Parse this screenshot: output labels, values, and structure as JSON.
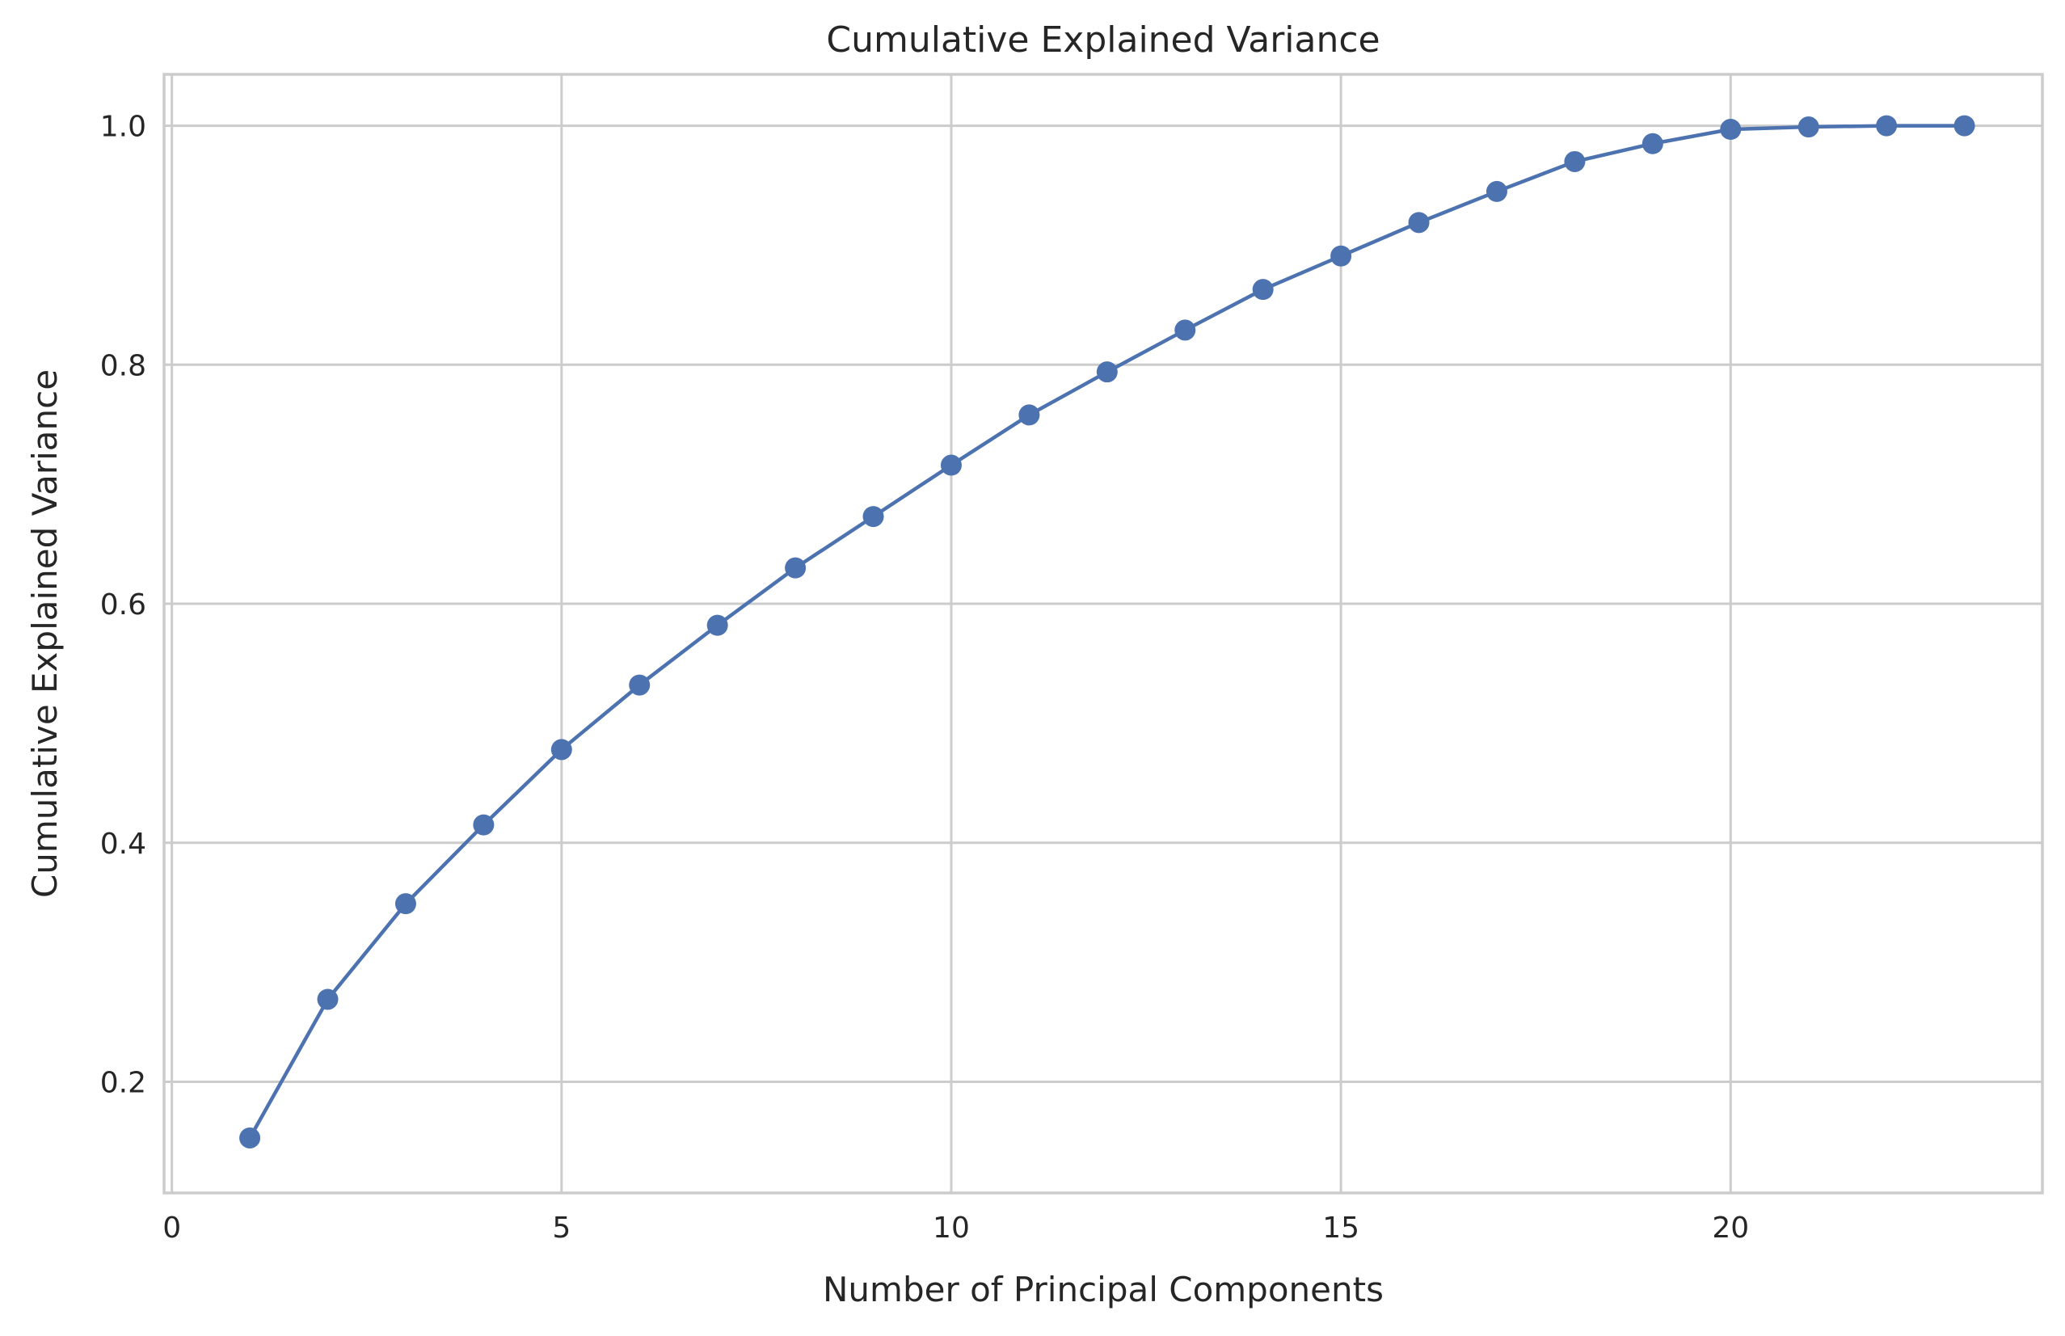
{
  "chart_data": {
    "type": "line",
    "title": "Cumulative Explained Variance",
    "xlabel": "Number of Principal Components",
    "ylabel": "Cumulative Explained Variance",
    "xlim": [
      -0.1,
      24.0
    ],
    "ylim": [
      0.107,
      1.043
    ],
    "xticks": [
      0,
      5,
      10,
      15,
      20
    ],
    "xtick_labels": [
      "0",
      "5",
      "10",
      "15",
      "20"
    ],
    "yticks": [
      0.2,
      0.4,
      0.6,
      0.8,
      1.0
    ],
    "ytick_labels": [
      "0.2",
      "0.4",
      "0.6",
      "0.8",
      "1.0"
    ],
    "grid": true,
    "marker": "circle",
    "series": [
      {
        "color": "#4c72b0",
        "x": [
          1,
          2,
          3,
          4,
          5,
          6,
          7,
          8,
          9,
          10,
          11,
          12,
          13,
          14,
          15,
          16,
          17,
          18,
          19,
          20,
          21,
          22,
          23
        ],
        "values": [
          0.153,
          0.269,
          0.349,
          0.415,
          0.478,
          0.532,
          0.582,
          0.63,
          0.673,
          0.716,
          0.758,
          0.794,
          0.829,
          0.863,
          0.891,
          0.919,
          0.945,
          0.97,
          0.985,
          0.997,
          0.999,
          1.0,
          1.0
        ]
      }
    ],
    "colors": {
      "line": "#4c72b0",
      "grid": "#cccccc",
      "spine": "#cccccc",
      "text": "#262626",
      "background": "#ffffff"
    }
  }
}
